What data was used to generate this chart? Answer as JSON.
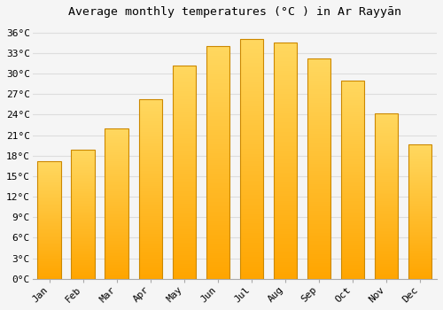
{
  "title": "Average monthly temperatures (°C ) in Ar Rayyān",
  "months": [
    "Jan",
    "Feb",
    "Mar",
    "Apr",
    "May",
    "Jun",
    "Jul",
    "Aug",
    "Sep",
    "Oct",
    "Nov",
    "Dec"
  ],
  "values": [
    17.2,
    18.9,
    22.0,
    26.2,
    31.2,
    34.0,
    35.1,
    34.6,
    32.2,
    29.0,
    24.2,
    19.6
  ],
  "bar_color_top": "#FFD060",
  "bar_color_bottom": "#FFA500",
  "bar_edge_color": "#CC8800",
  "background_color": "#f5f5f5",
  "grid_color": "#dddddd",
  "yticks": [
    0,
    3,
    6,
    9,
    12,
    15,
    18,
    21,
    24,
    27,
    30,
    33,
    36
  ],
  "ylim": [
    0,
    37.5
  ],
  "title_fontsize": 9.5,
  "tick_fontsize": 8,
  "font_family": "monospace",
  "bar_width": 0.7
}
